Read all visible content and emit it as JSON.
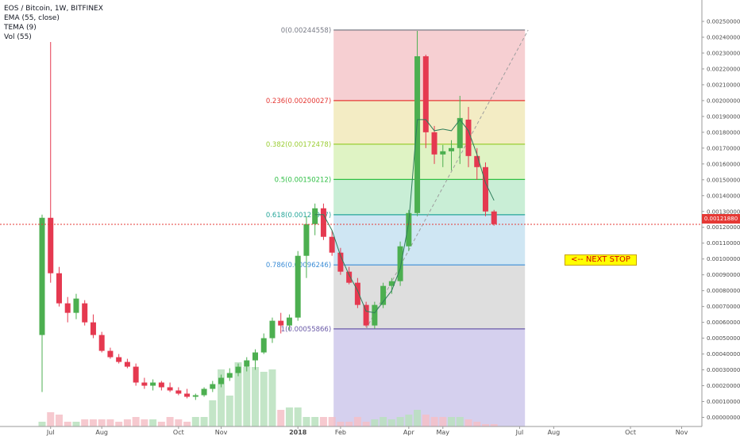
{
  "legend": {
    "symbol": "EOS / Bitcoin, 1W, BITFINEX",
    "ema": "EMA (55, close)",
    "tema": "TEMA (9)",
    "vol": "Vol (55)"
  },
  "annotation": {
    "note": "<-- NEXT STOP"
  },
  "colors": {
    "up": "#4caf50",
    "down": "#e53950",
    "price_line": "#e53935"
  },
  "chart_data": {
    "type": "candlestick",
    "title": "EOS / Bitcoin, 1W, BITFINEX",
    "y_axis": {
      "ticks": [
        "0.00250000",
        "0.00240000",
        "0.00230000",
        "0.00220000",
        "0.00210000",
        "0.00200000",
        "0.00190000",
        "0.00180000",
        "0.00170000",
        "0.00160000",
        "0.00150000",
        "0.00140000",
        "0.00130000",
        "0.00120000",
        "0.00110000",
        "0.00100000",
        "0.00090000",
        "0.00080000",
        "0.00070000",
        "0.00060000",
        "0.00050000",
        "0.00040000",
        "0.00030000",
        "0.00020000",
        "0.00010000",
        "0.00000000"
      ],
      "range": [
        0,
        0.0025
      ]
    },
    "x_axis": {
      "labels": [
        {
          "text": "Jul",
          "week": 1
        },
        {
          "text": "Aug",
          "week": 7
        },
        {
          "text": "Oct",
          "week": 16
        },
        {
          "text": "Nov",
          "week": 21
        },
        {
          "text": "2018",
          "week": 30
        },
        {
          "text": "Feb",
          "week": 35
        },
        {
          "text": "Apr",
          "week": 43
        },
        {
          "text": "May",
          "week": 47
        },
        {
          "text": "Jul",
          "week": 56
        },
        {
          "text": "Aug",
          "week": 60
        },
        {
          "text": "Oct",
          "week": 69
        },
        {
          "text": "Nov",
          "week": 75
        }
      ]
    },
    "current_price": "0.00121880",
    "fibonacci": [
      {
        "label": "0(0.00244558)",
        "value": 0.00244558,
        "color": "#787b86"
      },
      {
        "label": "0.236(0.00200027)",
        "value": 0.00200027,
        "color": "#e53935"
      },
      {
        "label": "0.382(0.00172478)",
        "value": 0.00172478,
        "color": "#9acd32"
      },
      {
        "label": "0.5(0.00150212)",
        "value": 0.00150212,
        "color": "#2fbf45"
      },
      {
        "label": "0.618(0.00127947)",
        "value": 0.00127947,
        "color": "#26a69a"
      },
      {
        "label": "0.786(0.00096246)",
        "value": 0.00096246,
        "color": "#3c8dd6"
      },
      {
        "label": "1(0.00055866)",
        "value": 0.00055866,
        "color": "#6b5ba8"
      }
    ],
    "fib_week_range": [
      34,
      57
    ],
    "candles": [
      {
        "w": 0,
        "o": 0.00052,
        "h": 0.00128,
        "l": 0.00016,
        "c": 0.00126
      },
      {
        "w": 1,
        "o": 0.00126,
        "h": 0.00237,
        "l": 0.00085,
        "c": 0.00091
      },
      {
        "w": 2,
        "o": 0.00091,
        "h": 0.00095,
        "l": 0.0007,
        "c": 0.00072
      },
      {
        "w": 3,
        "o": 0.00072,
        "h": 0.00076,
        "l": 0.0006,
        "c": 0.00066
      },
      {
        "w": 4,
        "o": 0.00066,
        "h": 0.00078,
        "l": 0.00062,
        "c": 0.00075
      },
      {
        "w": 5,
        "o": 0.00072,
        "h": 0.00074,
        "l": 0.00058,
        "c": 0.0006
      },
      {
        "w": 6,
        "o": 0.0006,
        "h": 0.00065,
        "l": 0.0005,
        "c": 0.00052
      },
      {
        "w": 7,
        "o": 0.00052,
        "h": 0.00054,
        "l": 0.00041,
        "c": 0.00042
      },
      {
        "w": 8,
        "o": 0.00042,
        "h": 0.00044,
        "l": 0.00037,
        "c": 0.00038
      },
      {
        "w": 9,
        "o": 0.00038,
        "h": 0.0004,
        "l": 0.00034,
        "c": 0.00035
      },
      {
        "w": 10,
        "o": 0.00035,
        "h": 0.00037,
        "l": 0.00031,
        "c": 0.00032
      },
      {
        "w": 11,
        "o": 0.00032,
        "h": 0.00034,
        "l": 0.0002,
        "c": 0.00022
      },
      {
        "w": 12,
        "o": 0.00022,
        "h": 0.00025,
        "l": 0.00018,
        "c": 0.0002
      },
      {
        "w": 13,
        "o": 0.0002,
        "h": 0.00024,
        "l": 0.00017,
        "c": 0.00022
      },
      {
        "w": 14,
        "o": 0.00022,
        "h": 0.00023,
        "l": 0.00017,
        "c": 0.00019
      },
      {
        "w": 15,
        "o": 0.00019,
        "h": 0.00022,
        "l": 0.00016,
        "c": 0.00017
      },
      {
        "w": 16,
        "o": 0.00017,
        "h": 0.00019,
        "l": 0.00014,
        "c": 0.00015
      },
      {
        "w": 17,
        "o": 0.00015,
        "h": 0.00018,
        "l": 0.00012,
        "c": 0.00013
      },
      {
        "w": 18,
        "o": 0.00013,
        "h": 0.00015,
        "l": 0.00011,
        "c": 0.00014
      },
      {
        "w": 19,
        "o": 0.00014,
        "h": 0.00019,
        "l": 0.00013,
        "c": 0.00018
      },
      {
        "w": 20,
        "o": 0.00018,
        "h": 0.00023,
        "l": 0.00016,
        "c": 0.00021
      },
      {
        "w": 21,
        "o": 0.00021,
        "h": 0.00027,
        "l": 0.00019,
        "c": 0.00025
      },
      {
        "w": 22,
        "o": 0.00025,
        "h": 0.00031,
        "l": 0.00023,
        "c": 0.00028
      },
      {
        "w": 23,
        "o": 0.00028,
        "h": 0.00034,
        "l": 0.00026,
        "c": 0.00032
      },
      {
        "w": 24,
        "o": 0.00032,
        "h": 0.00038,
        "l": 0.00029,
        "c": 0.00036
      },
      {
        "w": 25,
        "o": 0.00036,
        "h": 0.00043,
        "l": 0.0003,
        "c": 0.00041
      },
      {
        "w": 26,
        "o": 0.00041,
        "h": 0.00053,
        "l": 0.0004,
        "c": 0.0005
      },
      {
        "w": 27,
        "o": 0.0005,
        "h": 0.00063,
        "l": 0.00047,
        "c": 0.00061
      },
      {
        "w": 28,
        "o": 0.00061,
        "h": 0.00066,
        "l": 0.00053,
        "c": 0.00058
      },
      {
        "w": 29,
        "o": 0.00058,
        "h": 0.00065,
        "l": 0.00055,
        "c": 0.00063
      },
      {
        "w": 30,
        "o": 0.00063,
        "h": 0.00105,
        "l": 0.00061,
        "c": 0.00102
      },
      {
        "w": 31,
        "o": 0.00102,
        "h": 0.00127,
        "l": 0.00088,
        "c": 0.00122
      },
      {
        "w": 32,
        "o": 0.00122,
        "h": 0.00135,
        "l": 0.00115,
        "c": 0.00132
      },
      {
        "w": 33,
        "o": 0.00132,
        "h": 0.00135,
        "l": 0.00112,
        "c": 0.00114
      },
      {
        "w": 34,
        "o": 0.00114,
        "h": 0.00118,
        "l": 0.00102,
        "c": 0.00104
      },
      {
        "w": 35,
        "o": 0.00104,
        "h": 0.00107,
        "l": 0.0009,
        "c": 0.00092
      },
      {
        "w": 36,
        "o": 0.00092,
        "h": 0.00095,
        "l": 0.00084,
        "c": 0.00085
      },
      {
        "w": 37,
        "o": 0.00085,
        "h": 0.00088,
        "l": 0.00069,
        "c": 0.00071
      },
      {
        "w": 38,
        "o": 0.00071,
        "h": 0.00073,
        "l": 0.00057,
        "c": 0.00058
      },
      {
        "w": 39,
        "o": 0.00058,
        "h": 0.00073,
        "l": 0.00056,
        "c": 0.00071
      },
      {
        "w": 40,
        "o": 0.00071,
        "h": 0.00085,
        "l": 0.00069,
        "c": 0.00083
      },
      {
        "w": 41,
        "o": 0.00083,
        "h": 0.00088,
        "l": 0.00078,
        "c": 0.00086
      },
      {
        "w": 42,
        "o": 0.00086,
        "h": 0.00111,
        "l": 0.00083,
        "c": 0.00108
      },
      {
        "w": 43,
        "o": 0.00108,
        "h": 0.00131,
        "l": 0.00105,
        "c": 0.00129
      },
      {
        "w": 44,
        "o": 0.00129,
        "h": 0.00244,
        "l": 0.00127,
        "c": 0.00228
      },
      {
        "w": 45,
        "o": 0.00228,
        "h": 0.00229,
        "l": 0.0017,
        "c": 0.0018
      },
      {
        "w": 46,
        "o": 0.0018,
        "h": 0.00184,
        "l": 0.0016,
        "c": 0.00166
      },
      {
        "w": 47,
        "o": 0.00166,
        "h": 0.00172,
        "l": 0.00158,
        "c": 0.00168
      },
      {
        "w": 48,
        "o": 0.00168,
        "h": 0.00175,
        "l": 0.00156,
        "c": 0.0017
      },
      {
        "w": 49,
        "o": 0.0017,
        "h": 0.00203,
        "l": 0.0016,
        "c": 0.00189
      },
      {
        "w": 50,
        "o": 0.00188,
        "h": 0.00196,
        "l": 0.00158,
        "c": 0.00165
      },
      {
        "w": 51,
        "o": 0.00165,
        "h": 0.0017,
        "l": 0.0015,
        "c": 0.00158
      },
      {
        "w": 52,
        "o": 0.00158,
        "h": 0.00161,
        "l": 0.00127,
        "c": 0.0013
      },
      {
        "w": 53,
        "o": 0.0013,
        "h": 0.00131,
        "l": 0.00121,
        "c": 0.00122
      }
    ],
    "volume_max": 0.0003,
    "volumes": [
      {
        "w": 0,
        "v": 2e-05,
        "up": true
      },
      {
        "w": 1,
        "v": 6e-05,
        "up": false
      },
      {
        "w": 2,
        "v": 5e-05,
        "up": false
      },
      {
        "w": 3,
        "v": 2e-05,
        "up": false
      },
      {
        "w": 4,
        "v": 2e-05,
        "up": true
      },
      {
        "w": 5,
        "v": 3e-05,
        "up": false
      },
      {
        "w": 6,
        "v": 3e-05,
        "up": false
      },
      {
        "w": 7,
        "v": 3e-05,
        "up": false
      },
      {
        "w": 8,
        "v": 3e-05,
        "up": false
      },
      {
        "w": 9,
        "v": 2e-05,
        "up": false
      },
      {
        "w": 10,
        "v": 3e-05,
        "up": false
      },
      {
        "w": 11,
        "v": 4e-05,
        "up": false
      },
      {
        "w": 12,
        "v": 3e-05,
        "up": false
      },
      {
        "w": 13,
        "v": 3e-05,
        "up": true
      },
      {
        "w": 14,
        "v": 2e-05,
        "up": false
      },
      {
        "w": 15,
        "v": 4e-05,
        "up": false
      },
      {
        "w": 16,
        "v": 3e-05,
        "up": false
      },
      {
        "w": 17,
        "v": 2e-05,
        "up": false
      },
      {
        "w": 18,
        "v": 4e-05,
        "up": true
      },
      {
        "w": 19,
        "v": 4e-05,
        "up": true
      },
      {
        "w": 20,
        "v": 0.00011,
        "up": true
      },
      {
        "w": 21,
        "v": 0.00024,
        "up": true
      },
      {
        "w": 22,
        "v": 0.00013,
        "up": true
      },
      {
        "w": 23,
        "v": 0.00027,
        "up": true
      },
      {
        "w": 24,
        "v": 0.00025,
        "up": true
      },
      {
        "w": 25,
        "v": 0.00025,
        "up": true
      },
      {
        "w": 26,
        "v": 0.00023,
        "up": true
      },
      {
        "w": 27,
        "v": 0.00024,
        "up": true
      },
      {
        "w": 28,
        "v": 7e-05,
        "up": false
      },
      {
        "w": 29,
        "v": 8e-05,
        "up": true
      },
      {
        "w": 30,
        "v": 8e-05,
        "up": true
      },
      {
        "w": 31,
        "v": 4e-05,
        "up": true
      },
      {
        "w": 32,
        "v": 4e-05,
        "up": true
      },
      {
        "w": 33,
        "v": 4e-05,
        "up": false
      },
      {
        "w": 34,
        "v": 4e-05,
        "up": false
      },
      {
        "w": 35,
        "v": 2e-05,
        "up": false
      },
      {
        "w": 36,
        "v": 2e-05,
        "up": false
      },
      {
        "w": 37,
        "v": 4e-05,
        "up": false
      },
      {
        "w": 38,
        "v": 2e-05,
        "up": false
      },
      {
        "w": 39,
        "v": 3e-05,
        "up": true
      },
      {
        "w": 40,
        "v": 4e-05,
        "up": true
      },
      {
        "w": 41,
        "v": 3e-05,
        "up": true
      },
      {
        "w": 42,
        "v": 4e-05,
        "up": true
      },
      {
        "w": 43,
        "v": 5e-05,
        "up": true
      },
      {
        "w": 44,
        "v": 7e-05,
        "up": true
      },
      {
        "w": 45,
        "v": 5e-05,
        "up": false
      },
      {
        "w": 46,
        "v": 4e-05,
        "up": false
      },
      {
        "w": 47,
        "v": 4e-05,
        "up": false
      },
      {
        "w": 48,
        "v": 4e-05,
        "up": true
      },
      {
        "w": 49,
        "v": 4e-05,
        "up": true
      },
      {
        "w": 50,
        "v": 3e-05,
        "up": false
      },
      {
        "w": 51,
        "v": 2e-05,
        "up": false
      },
      {
        "w": 52,
        "v": 1e-05,
        "up": false
      },
      {
        "w": 53,
        "v": 1e-05,
        "up": false
      }
    ],
    "tema": [
      {
        "w": 32,
        "y": 0.00128
      },
      {
        "w": 33,
        "y": 0.00128
      },
      {
        "w": 34,
        "y": 0.00118
      },
      {
        "w": 35,
        "y": 0.00102
      },
      {
        "w": 36,
        "y": 0.0009
      },
      {
        "w": 37,
        "y": 0.0008
      },
      {
        "w": 38,
        "y": 0.00067
      },
      {
        "w": 39,
        "y": 0.00066
      },
      {
        "w": 40,
        "y": 0.00073
      },
      {
        "w": 41,
        "y": 0.0008
      },
      {
        "w": 42,
        "y": 0.00094
      },
      {
        "w": 43,
        "y": 0.00123
      },
      {
        "w": 44,
        "y": 0.00188
      },
      {
        "w": 45,
        "y": 0.00188
      },
      {
        "w": 46,
        "y": 0.00181
      },
      {
        "w": 47,
        "y": 0.00182
      },
      {
        "w": 48,
        "y": 0.00181
      },
      {
        "w": 49,
        "y": 0.00188
      },
      {
        "w": 50,
        "y": 0.00181
      },
      {
        "w": 51,
        "y": 0.00166
      },
      {
        "w": 52,
        "y": 0.00148
      },
      {
        "w": 53,
        "y": 0.00137
      }
    ],
    "trend_line": [
      {
        "w": 38,
        "y": 0.00055866
      },
      {
        "w": 57,
        "y": 0.00244558
      }
    ]
  }
}
